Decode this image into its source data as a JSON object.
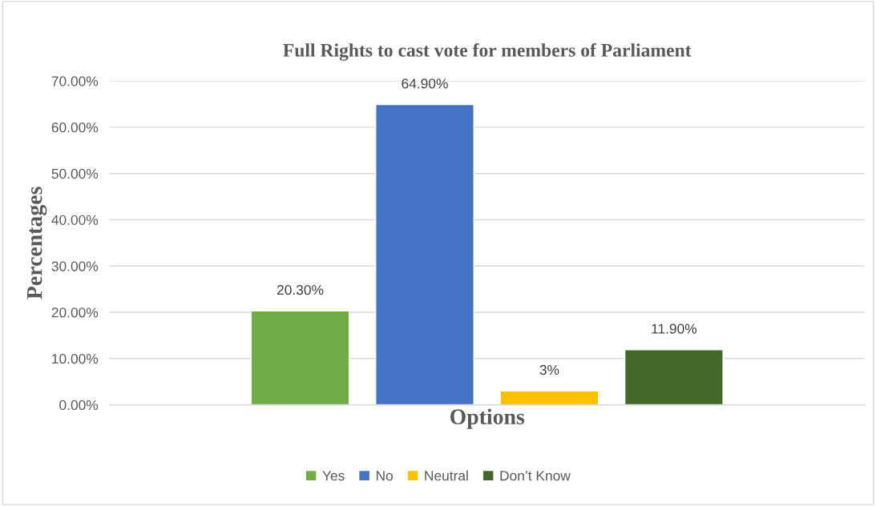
{
  "chart_data": {
    "type": "bar",
    "title": "Full Rights to cast vote for members of Parliament",
    "xlabel": "Options",
    "ylabel": "Percentages",
    "categories": [
      null
    ],
    "series": [
      {
        "name": "Yes",
        "color": "#70ad47",
        "values": [
          20.3
        ],
        "value_labels": [
          "20.30%"
        ]
      },
      {
        "name": "No",
        "color": "#4472c4",
        "values": [
          64.9
        ],
        "value_labels": [
          "64.90%"
        ]
      },
      {
        "name": "Neutral",
        "color": "#ffc000",
        "values": [
          3
        ],
        "value_labels": [
          "3%"
        ]
      },
      {
        "name": "Don’t Know",
        "color": "#43682b",
        "values": [
          11.9
        ],
        "value_labels": [
          "11.90%"
        ]
      }
    ],
    "ylim": [
      0,
      70
    ],
    "yticks": [
      {
        "value": 0,
        "label": "0.00%"
      },
      {
        "value": 10,
        "label": "10.00%"
      },
      {
        "value": 20,
        "label": "20.00%"
      },
      {
        "value": 30,
        "label": "30.00%"
      },
      {
        "value": 40,
        "label": "40.00%"
      },
      {
        "value": 50,
        "label": "50.00%"
      },
      {
        "value": 60,
        "label": "60.00%"
      },
      {
        "value": 70,
        "label": "70.00%"
      }
    ],
    "grid": "y",
    "legend": "bottom"
  }
}
